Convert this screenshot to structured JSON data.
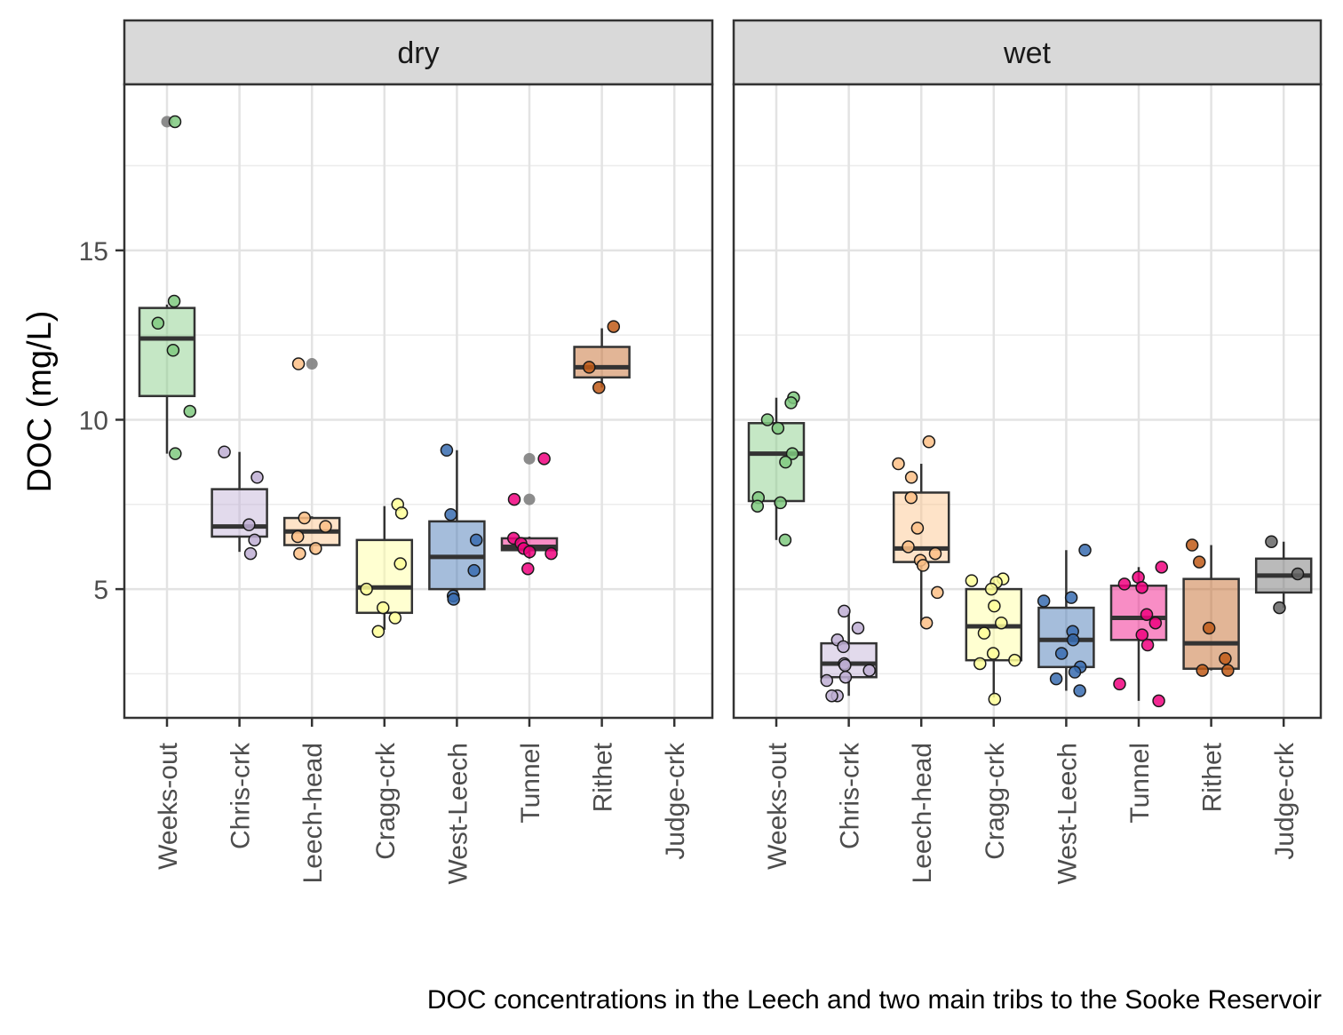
{
  "chart_data": {
    "type": "box",
    "ylabel": "DOC (mg/L)",
    "caption": "DOC concentrations in the Leech and two main tribs to the Sooke Reservoir",
    "categories": [
      "Weeks-out",
      "Chris-crk",
      "Leech-head",
      "Cragg-crk",
      "West-Leech",
      "Tunnel",
      "Rithet",
      "Judge-crk"
    ],
    "colors": {
      "Weeks-out": "#7fc97f",
      "Chris-crk": "#beaed4",
      "Leech-head": "#fdc086",
      "Cragg-crk": "#ffff99",
      "West-Leech": "#386cb0",
      "Tunnel": "#f0027f",
      "Rithet": "#bf5b17",
      "Judge-crk": "#666666"
    },
    "ylim": [
      1.2,
      19.9
    ],
    "yticks": [
      5,
      10,
      15
    ],
    "grid": true,
    "panels": [
      {
        "label": "dry",
        "boxes": [
          {
            "category": "Weeks-out",
            "q1": 10.7,
            "median": 12.4,
            "q3": 13.3,
            "low": 9.0,
            "high": 13.4,
            "outliers": [
              18.8
            ],
            "points": [
              13.5,
              12.85,
              12.05,
              10.25,
              9.0,
              18.8
            ]
          },
          {
            "category": "Chris-crk",
            "q1": 6.55,
            "median": 6.85,
            "q3": 7.95,
            "low": 6.1,
            "high": 9.05,
            "outliers": [],
            "points": [
              9.05,
              8.3,
              6.9,
              6.45,
              6.05
            ]
          },
          {
            "category": "Leech-head",
            "q1": 6.3,
            "median": 6.7,
            "q3": 7.1,
            "low": 6.1,
            "high": 7.15,
            "outliers": [
              11.65
            ],
            "points": [
              7.1,
              6.85,
              6.55,
              6.2,
              6.05,
              11.65
            ]
          },
          {
            "category": "Cragg-crk",
            "q1": 4.3,
            "median": 5.05,
            "q3": 6.45,
            "low": 3.8,
            "high": 7.45,
            "outliers": [],
            "points": [
              7.5,
              7.25,
              5.75,
              5.0,
              4.45,
              4.15,
              3.75
            ]
          },
          {
            "category": "West-Leech",
            "q1": 5.0,
            "median": 5.95,
            "q3": 7.0,
            "low": 4.7,
            "high": 9.1,
            "outliers": [],
            "points": [
              9.1,
              7.2,
              6.45,
              5.55,
              4.8,
              4.7
            ]
          },
          {
            "category": "Tunnel",
            "q1": 6.15,
            "median": 6.25,
            "q3": 6.5,
            "low": 5.9,
            "high": 6.55,
            "outliers": [
              7.65,
              8.85
            ],
            "points": [
              8.85,
              7.65,
              6.5,
              6.35,
              6.2,
              6.1,
              6.05,
              5.6
            ]
          },
          {
            "category": "Rithet",
            "q1": 11.25,
            "median": 11.55,
            "q3": 12.15,
            "low": 10.95,
            "high": 12.7,
            "outliers": [],
            "points": [
              12.75,
              11.55,
              10.95
            ]
          },
          {
            "category": "Judge-crk",
            "q1": null,
            "median": null,
            "q3": null,
            "low": null,
            "high": null,
            "outliers": [],
            "points": []
          }
        ]
      },
      {
        "label": "wet",
        "boxes": [
          {
            "category": "Weeks-out",
            "q1": 7.6,
            "median": 9.0,
            "q3": 9.9,
            "low": 6.45,
            "high": 10.65,
            "outliers": [],
            "points": [
              10.65,
              10.5,
              10.0,
              9.75,
              9.0,
              8.75,
              7.7,
              7.55,
              7.45,
              6.45
            ]
          },
          {
            "category": "Chris-crk",
            "q1": 2.4,
            "median": 2.8,
            "q3": 3.4,
            "low": 1.85,
            "high": 4.35,
            "outliers": [],
            "points": [
              4.35,
              3.85,
              3.5,
              3.3,
              2.8,
              2.75,
              2.6,
              2.4,
              2.3,
              1.85,
              1.85
            ]
          },
          {
            "category": "Leech-head",
            "q1": 5.8,
            "median": 6.2,
            "q3": 7.85,
            "low": 4.0,
            "high": 8.7,
            "outliers": [],
            "points": [
              9.35,
              8.7,
              8.3,
              7.7,
              6.8,
              6.25,
              6.05,
              5.85,
              5.7,
              4.9,
              4.0
            ]
          },
          {
            "category": "Cragg-crk",
            "q1": 2.9,
            "median": 3.9,
            "q3": 5.0,
            "low": 1.8,
            "high": 5.3,
            "outliers": [],
            "points": [
              5.3,
              5.25,
              5.2,
              5.0,
              4.5,
              4.0,
              3.7,
              3.1,
              2.9,
              2.8,
              1.75
            ]
          },
          {
            "category": "West-Leech",
            "q1": 2.7,
            "median": 3.5,
            "q3": 4.45,
            "low": 2.0,
            "high": 6.15,
            "outliers": [],
            "points": [
              6.15,
              4.75,
              4.65,
              3.75,
              3.5,
              3.1,
              2.7,
              2.55,
              2.35,
              2.0
            ]
          },
          {
            "category": "Tunnel",
            "q1": 3.5,
            "median": 4.15,
            "q3": 5.1,
            "low": 1.7,
            "high": 5.65,
            "outliers": [],
            "points": [
              5.65,
              5.35,
              5.15,
              5.05,
              4.25,
              4.0,
              3.65,
              3.35,
              2.2,
              1.7
            ]
          },
          {
            "category": "Rithet",
            "q1": 2.65,
            "median": 3.4,
            "q3": 5.3,
            "low": 2.6,
            "high": 6.3,
            "outliers": [],
            "points": [
              6.3,
              5.8,
              3.85,
              2.95,
              2.6,
              2.6
            ]
          },
          {
            "category": "Judge-crk",
            "q1": 4.9,
            "median": 5.4,
            "q3": 5.9,
            "low": 4.45,
            "high": 6.4,
            "outliers": [],
            "points": [
              6.4,
              5.45,
              4.45
            ]
          }
        ]
      }
    ]
  }
}
